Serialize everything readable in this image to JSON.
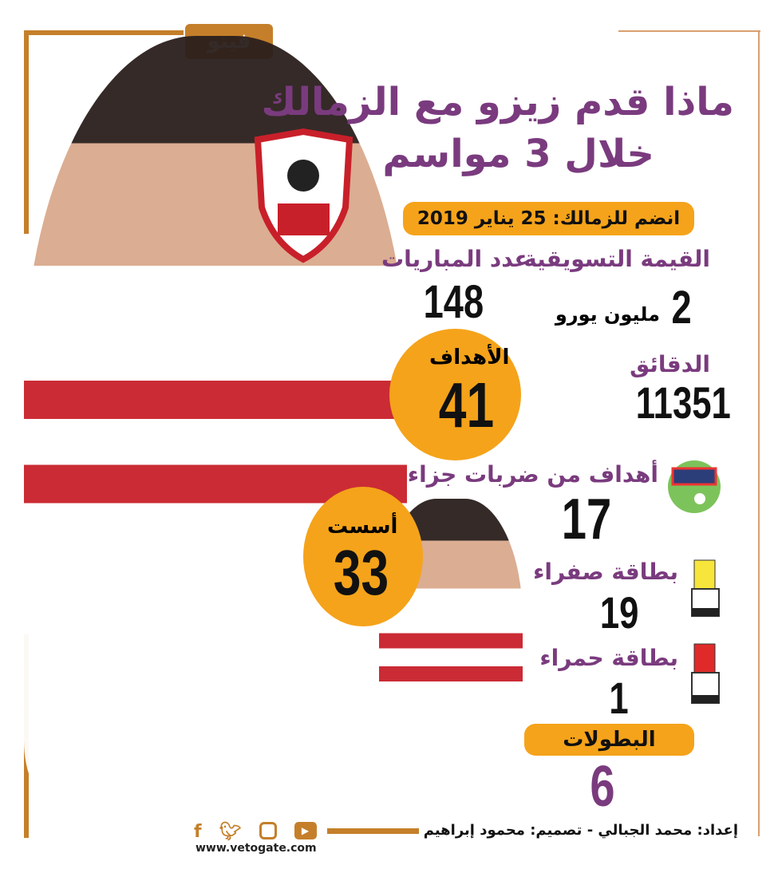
{
  "brand": {
    "logo_text": "فيتو",
    "website": "www.vetogate.com",
    "colors": {
      "accent": "#f5a31a",
      "title": "#7a3b7e",
      "frame": "#c57f2a"
    }
  },
  "title": {
    "line1": "ماذا قدم زيزو مع الزمالك",
    "line2": "خلال 3 مواسم"
  },
  "joined": "انضم للزمالك: 25 يناير 2019",
  "stats": {
    "market_value": {
      "label": "القيمة التسويقية",
      "value": "2",
      "unit": "مليون يورو"
    },
    "matches": {
      "label": "عدد المباريات",
      "value": "148"
    },
    "goals": {
      "label": "الأهداف",
      "value": "41"
    },
    "minutes": {
      "label": "الدقائق",
      "value": "11351"
    },
    "penalty_goals": {
      "label": "أهداف من ضربات جزاء",
      "value": "17",
      "icon": "penalty-goal-icon"
    },
    "assists": {
      "label": "أسست",
      "value": "33"
    },
    "yellow_cards": {
      "label": "بطاقة صفراء",
      "value": "19",
      "icon": "yellow-card-icon"
    },
    "red_cards": {
      "label": "بطاقة حمراء",
      "value": "1",
      "icon": "red-card-icon"
    },
    "titles": {
      "label": "البطولات",
      "value": "6"
    }
  },
  "footer": {
    "credits": "إعداد: محمد الجبالي  -  تصميم: محمود إبراهيم",
    "social": [
      "facebook-icon",
      "twitter-icon",
      "instagram-icon",
      "youtube-icon"
    ]
  }
}
